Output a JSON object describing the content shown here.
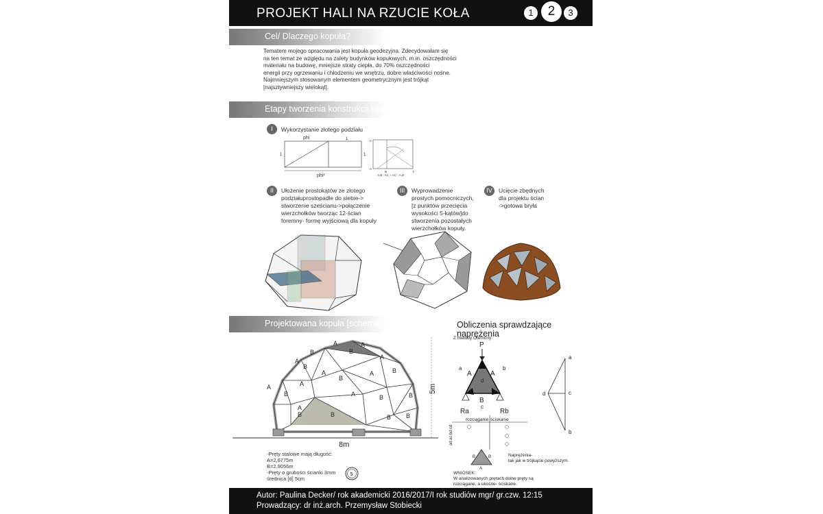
{
  "header": {
    "title": "PROJEKT HALI NA RZUCIE KOŁA",
    "pages": [
      "1",
      "2",
      "3"
    ]
  },
  "section_goal": {
    "title": "Cel/ Dlaczego kopuła?",
    "lines": [
      "Tematem mojego opracowania jest kopuła geodezyjna. Zdecydowałam się",
      "na ten temat ze względu na zalety budynków kopułowych, m.in. oszczędności",
      "materiału na budowę, mniejsze straty ciepła, do 70% oszczędności",
      "energii przy ogrzewaniu i chłodzeniu we wnętrzu, dobre właściwości nośne.",
      "Najmniejszym stosowanym elementem geometrycznym jest trójkąt",
      "[najsztywniejszy wielokąt]."
    ]
  },
  "section_stages": {
    "title": "Etapy tworzenia konstrukcji kopuły",
    "steps": [
      {
        "num": "I",
        "lines": [
          "Wykorzystanie złotego podziału"
        ]
      },
      {
        "num": "II",
        "lines": [
          "Ułożenie prostokątów ze złotego",
          "podziałuprostopadle do siebie->",
          "stworzenie sześcianu->połączenie",
          "wierzchołków tworząc 12-ścian",
          "foremny- formę wyjściową dla kopuły"
        ]
      },
      {
        "num": "III",
        "lines": [
          "Wyprowadzenie",
          "prostych pomocniczych,",
          "[z punktów przecięcia",
          "wysokości 5-kątów]do",
          "stworzenia pozostałych",
          "wierzchołków kopuły."
        ]
      },
      {
        "num": "IV",
        "lines": [
          "Ucięcie zbędnych",
          "dla projektu ścian",
          "->gotowa bryła"
        ]
      }
    ],
    "golden": {
      "phi": "phi",
      "phi2": "phi²",
      "one": "1",
      "caption": "A,B : AC = AC : A,D",
      "labels": [
        "C",
        "A",
        "B",
        "D"
      ]
    }
  },
  "section_dome": {
    "title": "Projektowana kopuła [schemat]",
    "width_label": "8m",
    "height_label": "5m",
    "member_labels": {
      "a": "A",
      "b": "B"
    },
    "notes": [
      "-Pręty stalowe mają długość:",
      "A=2,6775m",
      "B=2,9056m",
      "-Pręty o grubości ścianki 3mm",
      "średnica [d] 5cm"
    ],
    "section_symbol": "5"
  },
  "section_calc": {
    "title_lines": [
      "Obliczenia sprawdzające",
      "naprężenia"
    ],
    "method": "Z metody Cremony:",
    "force_p": "P",
    "labels": {
      "a": "a",
      "b": "b",
      "c": "c",
      "d": "d",
      "A": "A",
      "B": "B",
      "Ra": "Ra",
      "Rb": "Rb"
    },
    "table_headers": [
      "rozciąganie",
      "ściskanie"
    ],
    "table_rows": [
      "ad",
      "ac",
      "bd",
      "cd"
    ],
    "stress_note": [
      "Naprężenia-",
      "tak jak w trójkącie powyższym."
    ],
    "conclusion": [
      "WNIOSEK:",
      "W analizowanych prętach dolne pręty są",
      "rozciągane, a ukośne- ściskane."
    ]
  },
  "footer": {
    "line1": "Autor: Paulina Decker/ rok akademicki 2016/2017/I rok studiów mgr/ gr.czw. 12:15",
    "line2": "Prowadzący: dr inż.arch. Przemysław Stobiecki"
  }
}
